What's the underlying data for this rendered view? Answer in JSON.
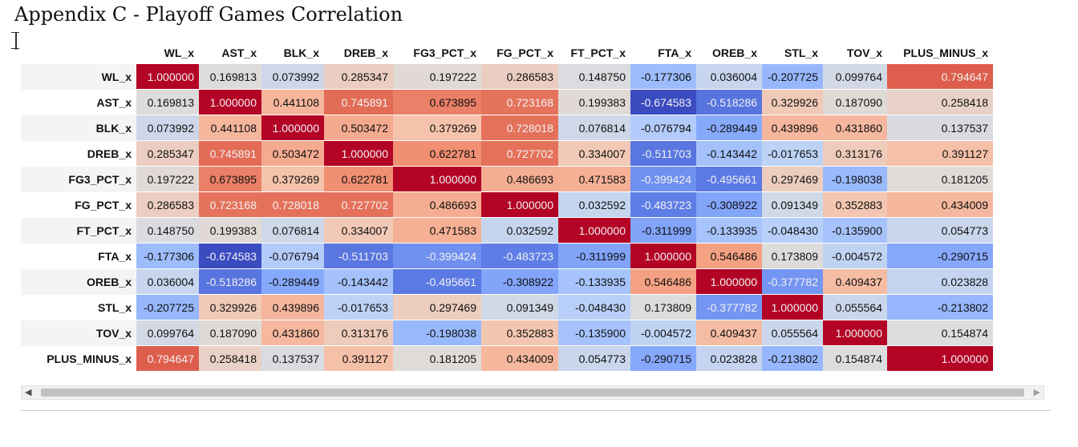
{
  "page": {
    "title": "Appendix C - Playoff Games Correlation"
  },
  "chart_data": {
    "type": "heatmap",
    "title": "Appendix C - Playoff Games Correlation",
    "colormap": "coolwarm",
    "vmin": -0.674583,
    "vmax": 1.0,
    "columns": [
      "WL_x",
      "AST_x",
      "BLK_x",
      "DREB_x",
      "FG3_PCT_x",
      "FG_PCT_x",
      "FT_PCT_x",
      "FTA_x",
      "OREB_x",
      "STL_x",
      "TOV_x",
      "PLUS_MINUS_x"
    ],
    "rows": [
      "WL_x",
      "AST_x",
      "BLK_x",
      "DREB_x",
      "FG3_PCT_x",
      "FG_PCT_x",
      "FT_PCT_x",
      "FTA_x",
      "OREB_x",
      "STL_x",
      "TOV_x",
      "PLUS_MINUS_x"
    ],
    "values": [
      [
        1.0,
        0.169813,
        0.073992,
        0.285347,
        0.197222,
        0.286583,
        0.14875,
        -0.177306,
        0.036004,
        -0.207725,
        0.099764,
        0.794647
      ],
      [
        0.169813,
        1.0,
        0.441108,
        0.745891,
        0.673895,
        0.723168,
        0.199383,
        -0.674583,
        -0.518286,
        0.329926,
        0.18709,
        0.258418
      ],
      [
        0.073992,
        0.441108,
        1.0,
        0.503472,
        0.379269,
        0.728018,
        0.076814,
        -0.076794,
        -0.289449,
        0.439896,
        0.43186,
        0.137537
      ],
      [
        0.285347,
        0.745891,
        0.503472,
        1.0,
        0.622781,
        0.727702,
        0.334007,
        -0.511703,
        -0.143442,
        -0.017653,
        0.313176,
        0.391127
      ],
      [
        0.197222,
        0.673895,
        0.379269,
        0.622781,
        1.0,
        0.486693,
        0.471583,
        -0.399424,
        -0.495661,
        0.297469,
        -0.198038,
        0.181205
      ],
      [
        0.286583,
        0.723168,
        0.728018,
        0.727702,
        0.486693,
        1.0,
        0.032592,
        -0.483723,
        -0.308922,
        0.091349,
        0.352883,
        0.434009
      ],
      [
        0.14875,
        0.199383,
        0.076814,
        0.334007,
        0.471583,
        0.032592,
        1.0,
        -0.311999,
        -0.133935,
        -0.04843,
        -0.1359,
        0.054773
      ],
      [
        -0.177306,
        -0.674583,
        -0.076794,
        -0.511703,
        -0.399424,
        -0.483723,
        -0.311999,
        1.0,
        0.546486,
        0.173809,
        -0.004572,
        -0.290715
      ],
      [
        0.036004,
        -0.518286,
        -0.289449,
        -0.143442,
        -0.495661,
        -0.308922,
        -0.133935,
        0.546486,
        1.0,
        -0.377782,
        0.409437,
        0.023828
      ],
      [
        -0.207725,
        0.329926,
        0.439896,
        -0.017653,
        0.297469,
        0.091349,
        -0.04843,
        0.173809,
        -0.377782,
        1.0,
        0.055564,
        -0.213802
      ],
      [
        0.099764,
        0.18709,
        0.43186,
        0.313176,
        -0.198038,
        0.352883,
        -0.1359,
        -0.004572,
        0.409437,
        0.055564,
        1.0,
        0.154874
      ],
      [
        0.794647,
        0.258418,
        0.137537,
        0.391127,
        0.181205,
        0.434009,
        0.054773,
        -0.290715,
        0.023828,
        -0.213802,
        0.154874,
        1.0
      ]
    ]
  },
  "scrollbar": {
    "left_arrow": "◀",
    "right_arrow": "▶"
  }
}
